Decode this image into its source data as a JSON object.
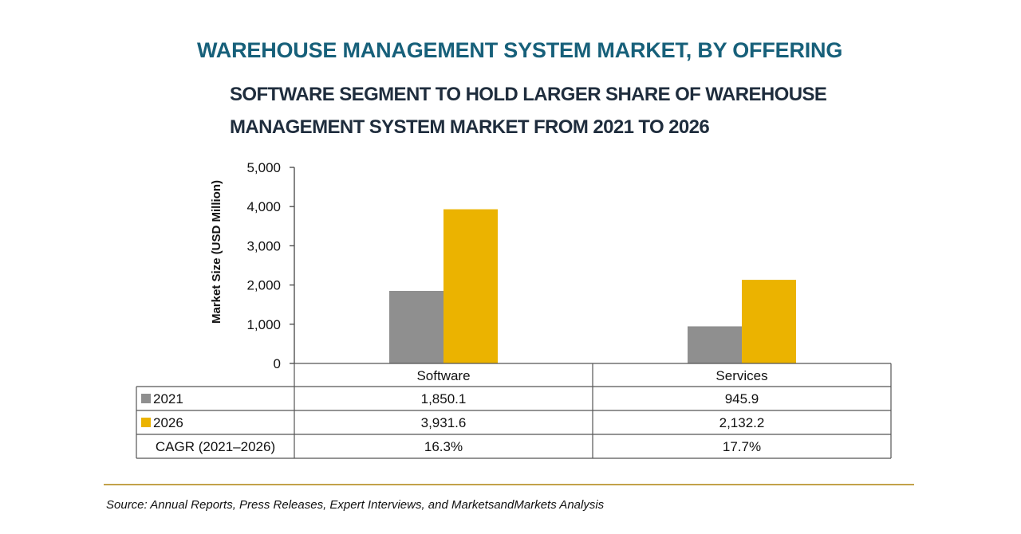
{
  "header": {
    "title": "WAREHOUSE MANAGEMENT SYSTEM MARKET, BY OFFERING",
    "subtitle": "SOFTWARE SEGMENT TO HOLD LARGER SHARE OF WAREHOUSE MANAGEMENT SYSTEM MARKET FROM 2021 TO 2026"
  },
  "chart_data": {
    "type": "bar",
    "categories": [
      "Software",
      "Services"
    ],
    "series": [
      {
        "name": "2021",
        "values": [
          1850.1,
          945.9
        ],
        "labels": [
          "1,850.1",
          "945.9"
        ],
        "color": "#8f8f8f"
      },
      {
        "name": "2026",
        "values": [
          3931.6,
          2132.2
        ],
        "labels": [
          "3,931.6",
          "2,132.2"
        ],
        "color": "#ebb300"
      }
    ],
    "ylabel": "Market Size (USD Million)",
    "ylim": [
      0,
      5000
    ],
    "yticks": [
      "0",
      "1,000",
      "2,000",
      "3,000",
      "4,000",
      "5,000"
    ],
    "grid": false,
    "data_table": {
      "extra_row": {
        "label": "CAGR (2021–2026)",
        "values": [
          "16.3%",
          "17.7%"
        ]
      }
    }
  },
  "footer": {
    "source": "Source: Annual Reports, Press Releases, Expert Interviews, and MarketsandMarkets Analysis"
  }
}
